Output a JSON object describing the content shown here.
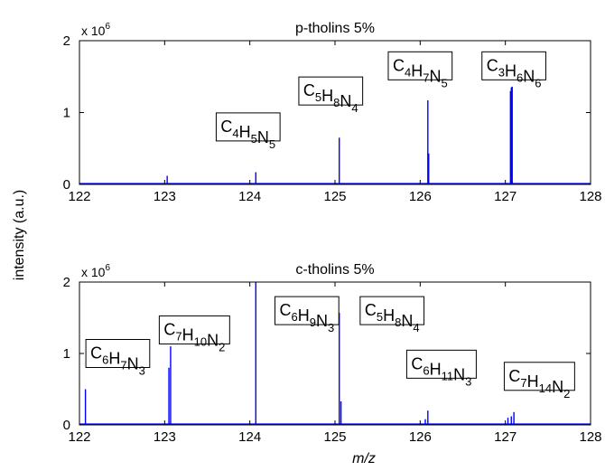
{
  "figure": {
    "ylabel": "intensity (a.u.)",
    "xlabel": "m/z"
  },
  "chart_data": [
    {
      "type": "line",
      "title": "p-tholins 5%",
      "xlim": [
        122,
        128
      ],
      "ylim": [
        0,
        2
      ],
      "x_ticks": [
        "122",
        "123",
        "124",
        "125",
        "126",
        "127",
        "128"
      ],
      "y_ticks": [
        "0",
        "1",
        "2"
      ],
      "multiplier_label": {
        "prefix": "x 10",
        "exponent": "6"
      },
      "peaks": [
        {
          "x": 123.03,
          "y": 0.12
        },
        {
          "x": 124.07,
          "y": 0.17
        },
        {
          "x": 125.05,
          "y": 0.65
        },
        {
          "x": 126.09,
          "y": 1.17
        },
        {
          "x": 126.1,
          "y": 0.43
        },
        {
          "x": 127.06,
          "y": 1.3
        },
        {
          "x": 127.07,
          "y": 1.35
        },
        {
          "x": 127.08,
          "y": 1.36
        }
      ],
      "annotations": [
        {
          "formula": [
            [
              "C",
              "4"
            ],
            [
              "H",
              "5"
            ],
            [
              "N",
              "5"
            ]
          ],
          "x": 123.98,
          "y": 0.8
        },
        {
          "formula": [
            [
              "C",
              "5"
            ],
            [
              "H",
              "8"
            ],
            [
              "N",
              "4"
            ]
          ],
          "x": 124.95,
          "y": 1.3
        },
        {
          "formula": [
            [
              "C",
              "4"
            ],
            [
              "H",
              "7"
            ],
            [
              "N",
              "5"
            ]
          ],
          "x": 126.0,
          "y": 1.65
        },
        {
          "formula": [
            [
              "C",
              "3"
            ],
            [
              "H",
              "6"
            ],
            [
              "N",
              "6"
            ]
          ],
          "x": 127.1,
          "y": 1.65
        }
      ]
    },
    {
      "type": "line",
      "title": "c-tholins 5%",
      "xlim": [
        122,
        128
      ],
      "ylim": [
        0,
        2
      ],
      "x_ticks": [
        "122",
        "123",
        "124",
        "125",
        "126",
        "127",
        "128"
      ],
      "y_ticks": [
        "0",
        "1",
        "2"
      ],
      "multiplier_label": {
        "prefix": "x 10",
        "exponent": "6"
      },
      "peaks": [
        {
          "x": 122.07,
          "y": 0.5
        },
        {
          "x": 123.05,
          "y": 0.8
        },
        {
          "x": 123.07,
          "y": 1.1
        },
        {
          "x": 124.07,
          "y": 2.0
        },
        {
          "x": 125.05,
          "y": 1.57
        },
        {
          "x": 125.07,
          "y": 0.33
        },
        {
          "x": 126.06,
          "y": 0.08
        },
        {
          "x": 126.09,
          "y": 0.2
        },
        {
          "x": 127.03,
          "y": 0.1
        },
        {
          "x": 127.07,
          "y": 0.12
        },
        {
          "x": 127.1,
          "y": 0.18
        }
      ],
      "annotations": [
        {
          "formula": [
            [
              "C",
              "6"
            ],
            [
              "H",
              "7"
            ],
            [
              "N",
              "3"
            ]
          ],
          "x": 122.45,
          "y": 1.0
        },
        {
          "formula": [
            [
              "C",
              "7"
            ],
            [
              "H",
              "10"
            ],
            [
              "N",
              "2"
            ]
          ],
          "x": 123.35,
          "y": 1.33
        },
        {
          "formula": [
            [
              "C",
              "6"
            ],
            [
              "H",
              "9"
            ],
            [
              "N",
              "3"
            ]
          ],
          "x": 124.67,
          "y": 1.6
        },
        {
          "formula": [
            [
              "C",
              "5"
            ],
            [
              "H",
              "8"
            ],
            [
              "N",
              "4"
            ]
          ],
          "x": 125.67,
          "y": 1.6
        },
        {
          "formula": [
            [
              "C",
              "6"
            ],
            [
              "H",
              "11"
            ],
            [
              "N",
              "3"
            ]
          ],
          "x": 126.25,
          "y": 0.85
        },
        {
          "formula": [
            [
              "C",
              "7"
            ],
            [
              "H",
              "14"
            ],
            [
              "N",
              "2"
            ]
          ],
          "x": 127.4,
          "y": 0.68
        }
      ]
    }
  ],
  "colors": {
    "line": "#0000ff",
    "axes": "#000000",
    "box_edge": "#000000",
    "box_fill": "#ffffff"
  }
}
